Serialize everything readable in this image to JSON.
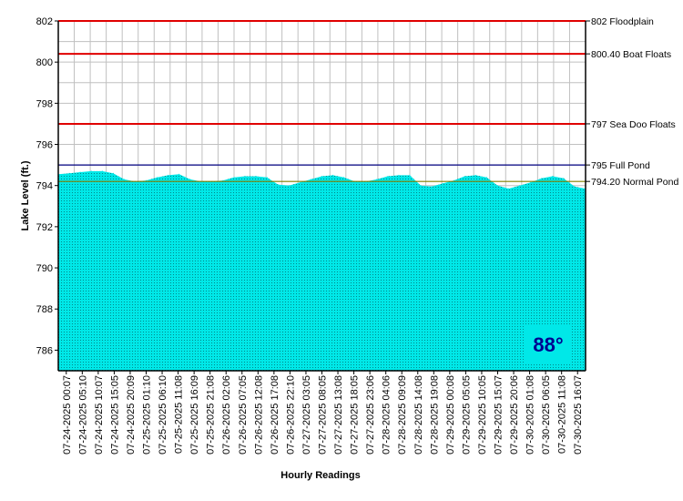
{
  "chart_data": {
    "type": "area",
    "title": "",
    "xlabel": "Hourly Readings",
    "ylabel": "Lake Level (ft.)",
    "ylim": [
      785,
      802
    ],
    "yticks": [
      802,
      800,
      798,
      796,
      794,
      792,
      790,
      788,
      786
    ],
    "grid": true,
    "x_tick_labels": [
      "07-24-2025 00:07",
      "07-24-2025 05:10",
      "07-24-2025 10:07",
      "07-24-2025 15:05",
      "07-24-2025 20:09",
      "07-25-2025 01:10",
      "07-25-2025 06:10",
      "07-25-2025 11:08",
      "07-25-2025 16:09",
      "07-25-2025 21:08",
      "07-26-2025 02:06",
      "07-26-2025 07:05",
      "07-26-2025 12:08",
      "07-26-2025 17:08",
      "07-26-2025 22:10",
      "07-27-2025 03:05",
      "07-27-2025 08:05",
      "07-27-2025 13:08",
      "07-27-2025 18:05",
      "07-27-2025 23:06",
      "07-28-2025 04:06",
      "07-28-2025 09:09",
      "07-28-2025 14:08",
      "07-28-2025 19:08",
      "07-29-2025 00:08",
      "07-29-2025 05:05",
      "07-29-2025 10:05",
      "07-29-2025 15:07",
      "07-29-2025 20:06",
      "07-30-2025 01:08",
      "07-30-2025 06:05",
      "07-30-2025 11:08",
      "07-30-2025 16:07"
    ],
    "series": [
      {
        "values": [
          794.55,
          794.6,
          794.65,
          794.7,
          794.7,
          794.6,
          794.3,
          794.2,
          794.25,
          794.4,
          794.5,
          794.55,
          794.3,
          794.2,
          794.2,
          794.25,
          794.4,
          794.45,
          794.45,
          794.4,
          794.05,
          794.0,
          794.15,
          794.3,
          794.45,
          794.5,
          794.4,
          794.2,
          794.2,
          794.3,
          794.45,
          794.5,
          794.5,
          794.0,
          793.95,
          794.1,
          794.25,
          794.45,
          794.5,
          794.4,
          794.0,
          793.85,
          794.0,
          794.15,
          794.35,
          794.45,
          794.35,
          793.95,
          793.85
        ],
        "color": "#00e8e8"
      }
    ],
    "reference_lines": [
      {
        "value": 802,
        "label": "802 Floodplain",
        "color": "#e00000"
      },
      {
        "value": 800.4,
        "label": "800.40 Boat Floats",
        "color": "#e00000"
      },
      {
        "value": 797,
        "label": "797 Sea Doo Floats",
        "color": "#e00000"
      },
      {
        "value": 795,
        "label": "795 Full Pond",
        "color": "#000080"
      },
      {
        "value": 794.2,
        "label": "794.20 Normal Pond",
        "color": "#808000"
      }
    ],
    "annotation": {
      "text": "88°",
      "color": "#000090",
      "background": "#00e8e8"
    }
  }
}
